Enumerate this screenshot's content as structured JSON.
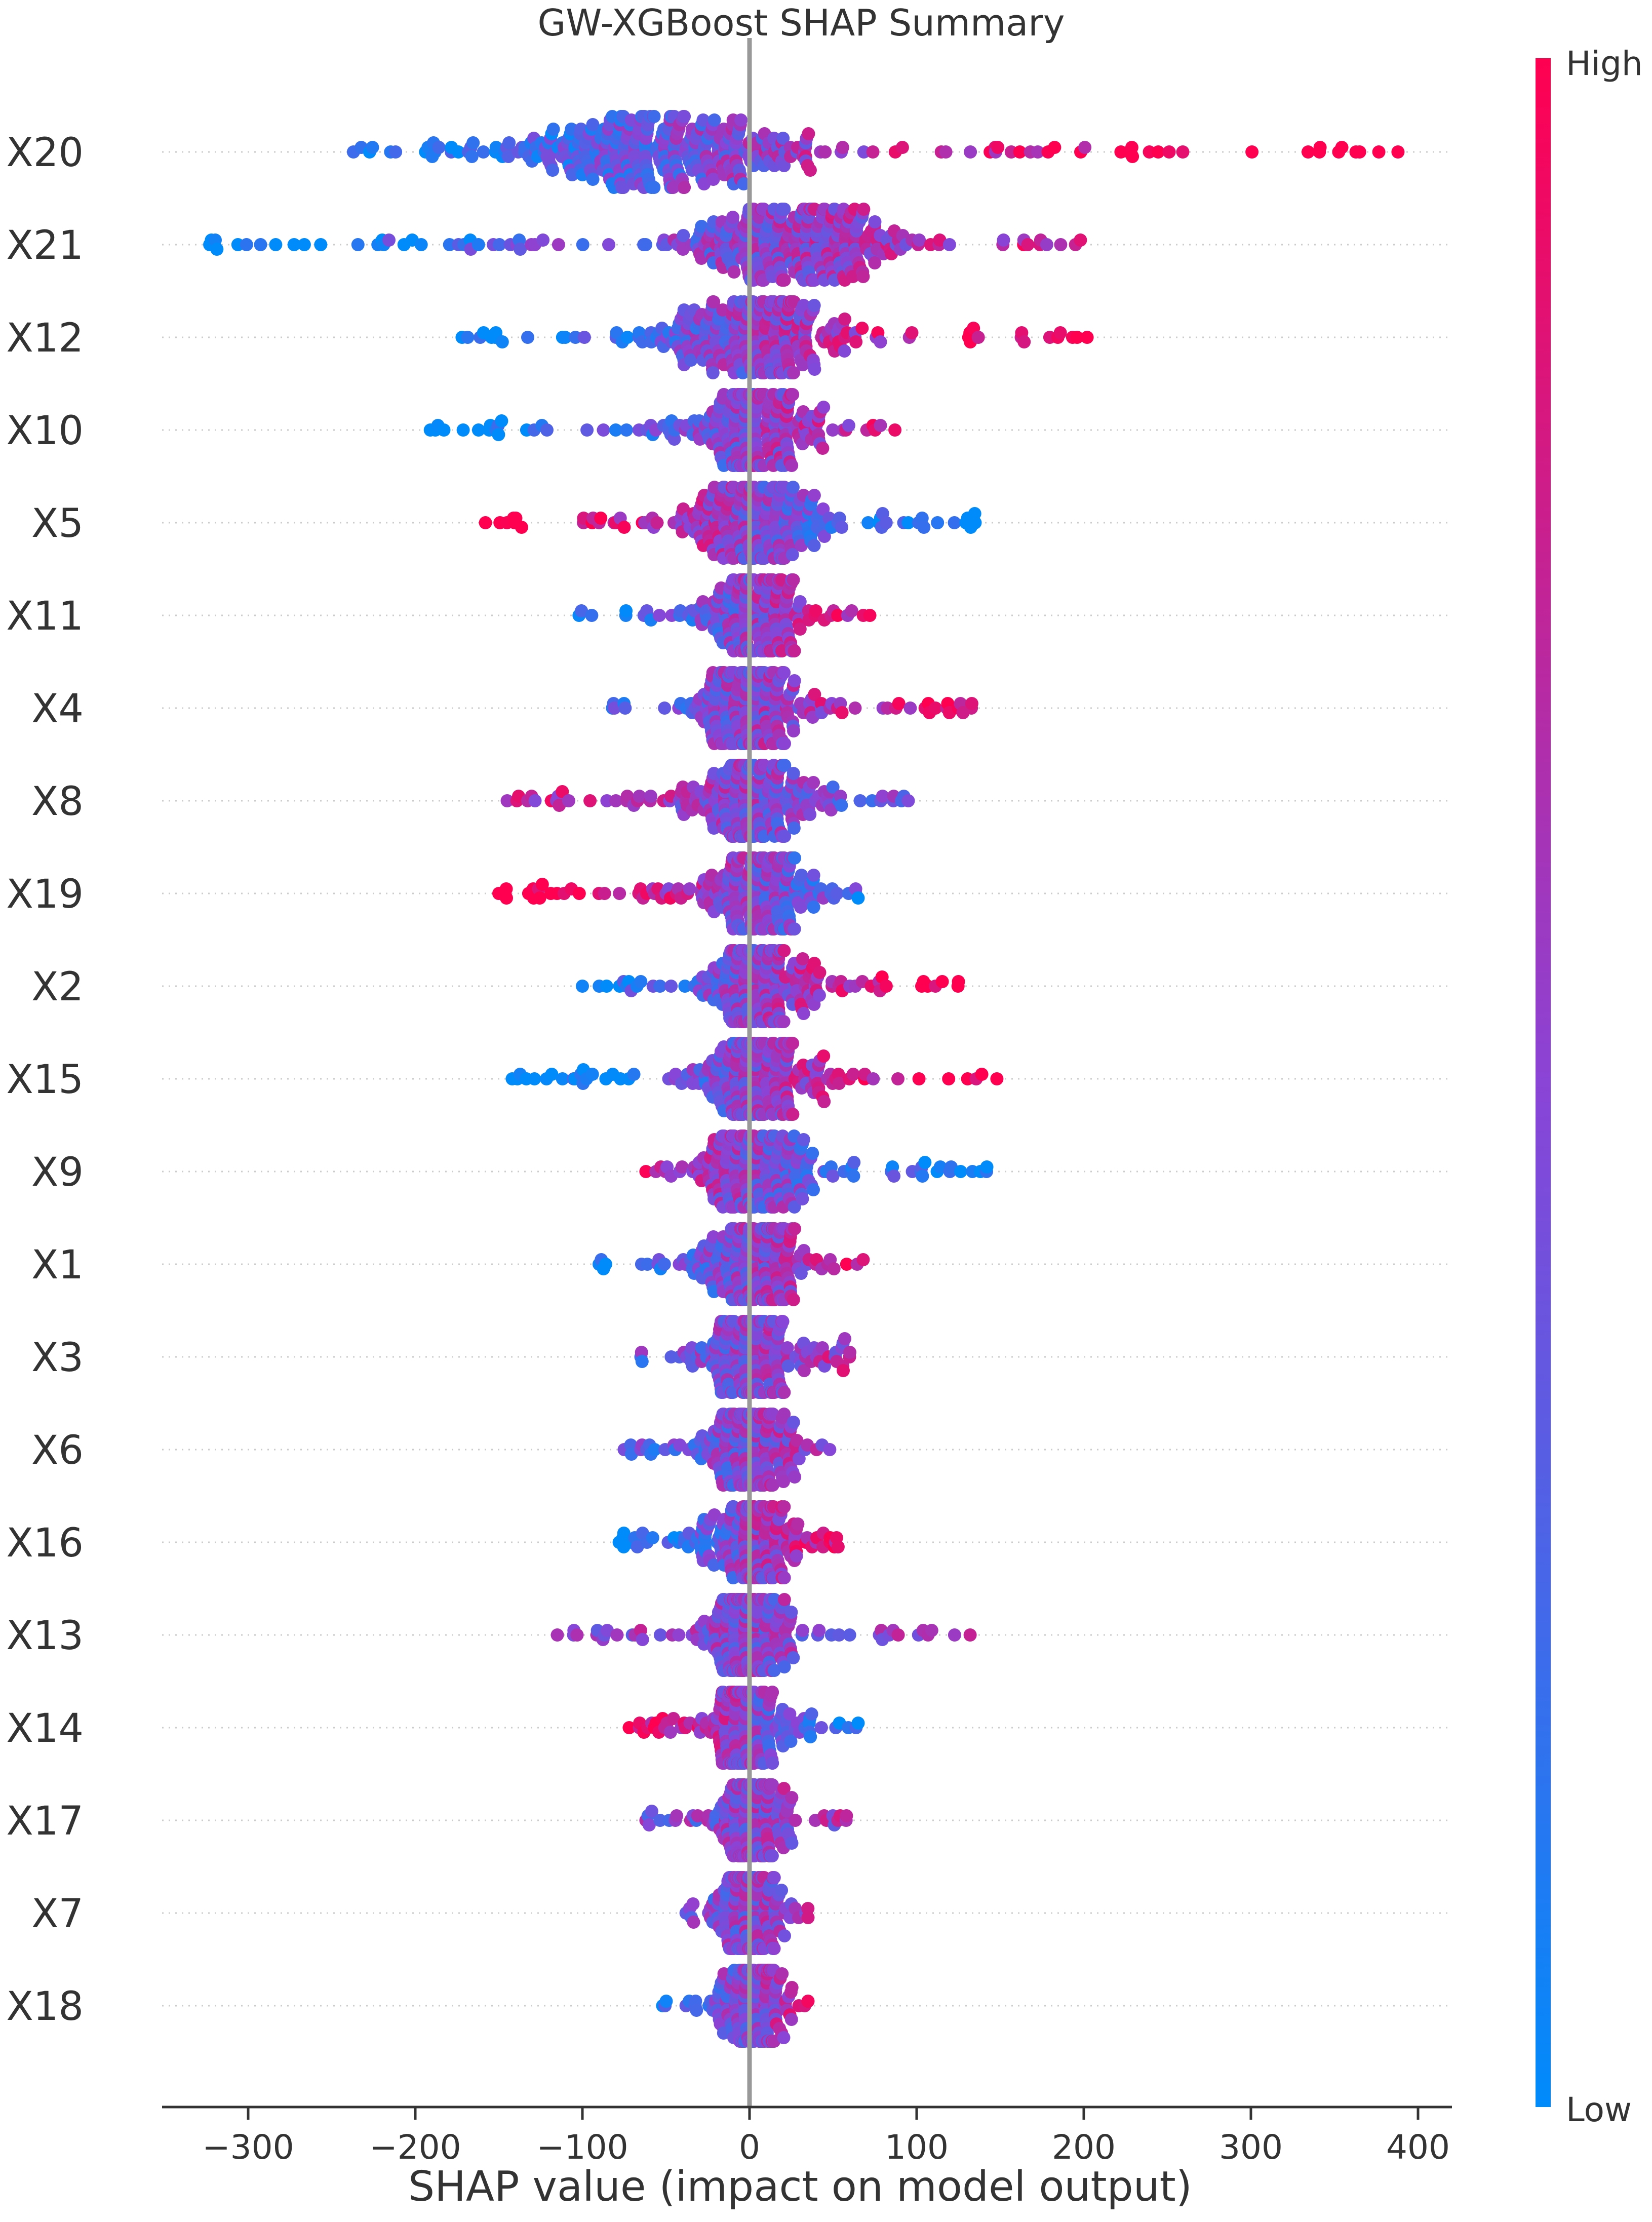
{
  "chart_data": {
    "type": "scatter",
    "subtype": "shap-beeswarm",
    "title": "GW-XGBoost SHAP Summary",
    "xlabel": "SHAP value (impact on model output)",
    "ylabel": "",
    "xlim": [
      -355,
      422
    ],
    "xticks": [
      -300,
      -200,
      -100,
      0,
      100,
      200,
      300,
      400
    ],
    "xtick_labels": [
      "−300",
      "−200",
      "−100",
      "0",
      "100",
      "200",
      "300",
      "400"
    ],
    "zero_line": 0,
    "grid": "dotted row guides",
    "colorbar": {
      "label_high": "High",
      "label_low": "Low",
      "color_low": "#008bfb",
      "color_high": "#ff0051",
      "placement": "right"
    },
    "features": [
      {
        "name": "X20",
        "min": -237,
        "max": 388,
        "core_lo": -110,
        "core_hi": 60,
        "skew": -30,
        "trend": 1.0
      },
      {
        "name": "X21",
        "min": -323,
        "max": 198,
        "core_lo": -60,
        "core_hi": 70,
        "skew": 20,
        "trend": 0.6
      },
      {
        "name": "X12",
        "min": -172,
        "max": 202,
        "core_lo": -50,
        "core_hi": 60,
        "skew": 0,
        "trend": 0.8
      },
      {
        "name": "X10",
        "min": -191,
        "max": 87,
        "core_lo": -30,
        "core_hi": 40,
        "skew": 0,
        "trend": 0.8
      },
      {
        "name": "X5",
        "min": -158,
        "max": 135,
        "core_lo": -40,
        "core_hi": 45,
        "skew": 0,
        "trend": -0.8
      },
      {
        "name": "X11",
        "min": -102,
        "max": 72,
        "core_lo": -25,
        "core_hi": 35,
        "skew": 0,
        "trend": 0.6
      },
      {
        "name": "X4",
        "min": -82,
        "max": 133,
        "core_lo": -30,
        "core_hi": 35,
        "skew": 0,
        "trend": 0.5
      },
      {
        "name": "X8",
        "min": -145,
        "max": 95,
        "core_lo": -35,
        "core_hi": 40,
        "skew": 0,
        "trend": -0.3
      },
      {
        "name": "X19",
        "min": -150,
        "max": 65,
        "core_lo": -30,
        "core_hi": 35,
        "skew": 5,
        "trend": -0.8
      },
      {
        "name": "X2",
        "min": -100,
        "max": 125,
        "core_lo": -30,
        "core_hi": 40,
        "skew": 0,
        "trend": 0.7
      },
      {
        "name": "X15",
        "min": -142,
        "max": 148,
        "core_lo": -30,
        "core_hi": 40,
        "skew": 0,
        "trend": 0.7
      },
      {
        "name": "X9",
        "min": -62,
        "max": 142,
        "core_lo": -30,
        "core_hi": 35,
        "skew": 0,
        "trend": -0.7
      },
      {
        "name": "X1",
        "min": -90,
        "max": 68,
        "core_lo": -30,
        "core_hi": 35,
        "skew": 0,
        "trend": 0.5
      },
      {
        "name": "X3",
        "min": -65,
        "max": 60,
        "core_lo": -25,
        "core_hi": 30,
        "skew": 0,
        "trend": 0.2
      },
      {
        "name": "X6",
        "min": -75,
        "max": 48,
        "core_lo": -25,
        "core_hi": 25,
        "skew": 0,
        "trend": 0.3
      },
      {
        "name": "X16",
        "min": -78,
        "max": 53,
        "core_lo": -25,
        "core_hi": 30,
        "skew": 0,
        "trend": 0.7
      },
      {
        "name": "X13",
        "min": -115,
        "max": 132,
        "core_lo": -25,
        "core_hi": 25,
        "skew": 0,
        "trend": 0.0
      },
      {
        "name": "X14",
        "min": -72,
        "max": 65,
        "core_lo": -30,
        "core_hi": 25,
        "skew": 0,
        "trend": -0.6
      },
      {
        "name": "X17",
        "min": -62,
        "max": 58,
        "core_lo": -20,
        "core_hi": 22,
        "skew": 0,
        "trend": 0.1
      },
      {
        "name": "X7",
        "min": -38,
        "max": 35,
        "core_lo": -18,
        "core_hi": 18,
        "skew": 0,
        "trend": 0.1
      },
      {
        "name": "X18",
        "min": -52,
        "max": 35,
        "core_lo": -18,
        "core_hi": 22,
        "skew": 0,
        "trend": 0.4
      }
    ]
  }
}
